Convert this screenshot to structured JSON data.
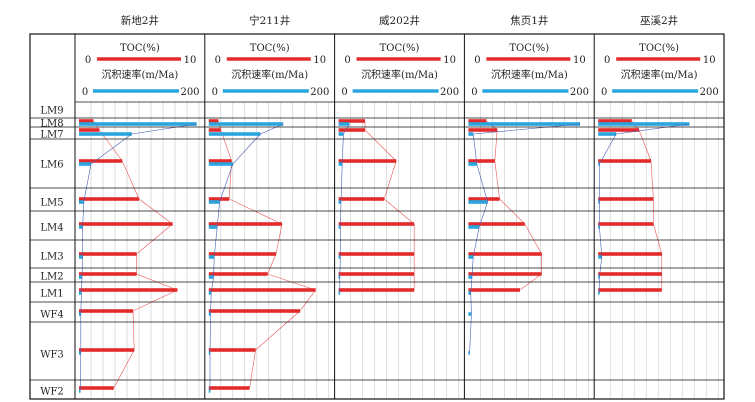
{
  "colors": {
    "toc": "#e32b2b",
    "rate": "#2aa5dd",
    "trend": "#4a5fb5",
    "grid": "#c8c8c8",
    "frame": "#111111"
  },
  "chart_data": {
    "type": "bar",
    "layers": [
      "LM9",
      "LM8",
      "LM7",
      "LM6",
      "LM5",
      "LM4",
      "LM3",
      "LM2",
      "LM1",
      "WF4",
      "WF3",
      "WF2"
    ],
    "toc_axis": {
      "label": "TOC(%)",
      "min": "0",
      "max": "10",
      "range": [
        0,
        10
      ]
    },
    "rate_axis": {
      "label": "沉积速率(m/Ma)",
      "min": "0",
      "max": "200",
      "range": [
        0,
        200
      ]
    },
    "wells": [
      {
        "name": "新地2井",
        "toc": [
          null,
          1.2,
          1.7,
          3.6,
          5.0,
          7.8,
          4.8,
          4.8,
          8.2,
          4.5,
          4.6,
          2.9
        ],
        "rate": [
          null,
          196,
          88,
          20,
          8,
          6,
          6,
          5,
          4,
          3,
          3,
          2
        ]
      },
      {
        "name": "宁211井",
        "toc": [
          null,
          0.8,
          1.0,
          1.9,
          1.7,
          6.1,
          5.6,
          4.9,
          8.9,
          7.6,
          3.9,
          3.4
        ],
        "rate": [
          null,
          124,
          86,
          40,
          18,
          14,
          9,
          8,
          4,
          3,
          2,
          2
        ]
      },
      {
        "name": "威202井",
        "toc": [
          null,
          2.2,
          2.2,
          4.8,
          3.8,
          6.3,
          6.3,
          6.3,
          6.3,
          null,
          null,
          null
        ],
        "rate": [
          null,
          18,
          8,
          6,
          4,
          3,
          3,
          2,
          2,
          null,
          null,
          null
        ]
      },
      {
        "name": "焦页1井",
        "toc": [
          null,
          1.5,
          2.4,
          2.2,
          2.6,
          4.7,
          6.1,
          6.1,
          4.3,
          null,
          null,
          null
        ],
        "rate": [
          null,
          186,
          8,
          14,
          32,
          18,
          8,
          6,
          4,
          5,
          2,
          null
        ]
      },
      {
        "name": "巫溪2井",
        "toc": [
          null,
          2.8,
          3.4,
          4.4,
          4.6,
          4.6,
          5.3,
          5.3,
          5.3,
          null,
          null,
          null
        ],
        "rate": [
          null,
          152,
          30,
          2,
          2,
          2,
          6,
          2,
          2,
          null,
          null,
          null
        ]
      }
    ]
  }
}
